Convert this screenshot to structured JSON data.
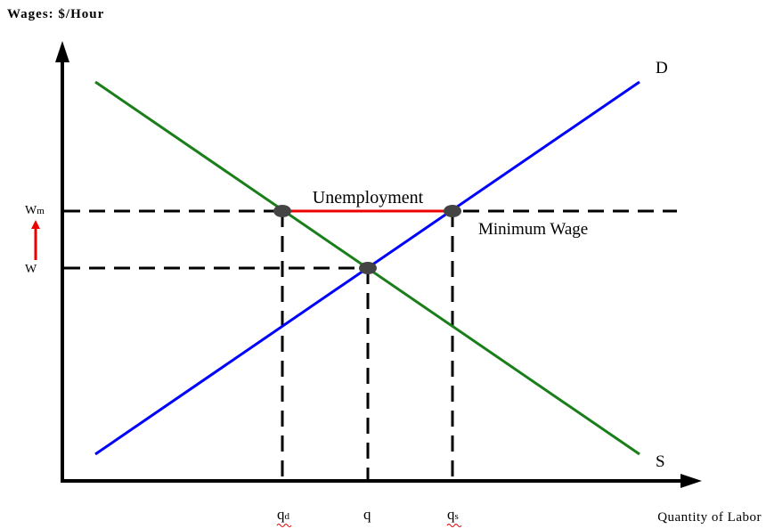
{
  "diagram": {
    "y_axis_title": "Wages: $/Hour",
    "x_axis_title": "Quantity of Labor",
    "curves": [
      {
        "label": "D"
      },
      {
        "label": "S"
      }
    ],
    "annotations": {
      "gap": "Unemployment",
      "floor": "Minimum Wage"
    },
    "wage_labels": [
      {
        "base": "W",
        "sub": "m"
      },
      {
        "base": "W"
      }
    ],
    "quantity_labels": [
      {
        "base": "q",
        "sub": "d"
      },
      {
        "base": "q"
      },
      {
        "base": "q",
        "sub": "s"
      }
    ]
  }
}
